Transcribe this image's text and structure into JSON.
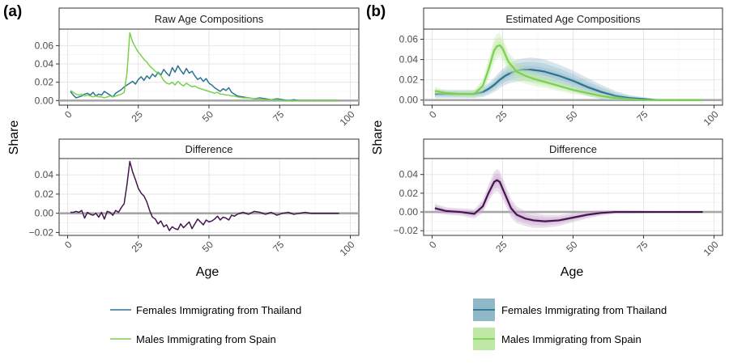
{
  "figure": {
    "panel_a_label": "(a)",
    "panel_b_label": "(b)",
    "ylabel": "Share",
    "xlabel": "Age"
  },
  "colors": {
    "thailand": "#2c7393",
    "spain": "#7ad151",
    "difference": "#44174f",
    "thailand_band": "#8fb8c9",
    "spain_band": "#bfe8a6",
    "difference_band": "#c8a6cf",
    "baseline": "#a6a6a6",
    "grid": "#e6e6e6",
    "strip_fill": "#ffffff"
  },
  "legend": {
    "left": [
      {
        "label": "Females Immigrating from Thailand",
        "series": "thailand",
        "band": false
      },
      {
        "label": "Males Immigrating from Spain",
        "series": "spain",
        "band": false
      }
    ],
    "right": [
      {
        "label": "Females Immigrating from Thailand",
        "series": "thailand",
        "band": true
      },
      {
        "label": "Males Immigrating from Spain",
        "series": "spain",
        "band": true
      }
    ]
  },
  "chart_data": [
    {
      "id": "a_top",
      "type": "line",
      "title": "Raw Age Compositions",
      "xlabel": "",
      "ylabel": "Share",
      "xlim": [
        -3,
        103
      ],
      "ylim": [
        -0.005,
        0.078
      ],
      "xticks": [
        0,
        25,
        50,
        75,
        100
      ],
      "yticks": [
        0,
        0.02,
        0.04,
        0.06
      ],
      "ytick_labels": [
        "0.00",
        "0.02",
        "0.04",
        "0.06"
      ],
      "baseline": 0,
      "series": [
        {
          "name": "Females Immigrating from Thailand",
          "color_key": "thailand",
          "x": [
            1,
            2,
            3,
            4,
            5,
            6,
            7,
            8,
            9,
            10,
            11,
            12,
            13,
            14,
            15,
            16,
            17,
            18,
            19,
            20,
            21,
            22,
            23,
            24,
            25,
            26,
            27,
            28,
            29,
            30,
            31,
            32,
            33,
            34,
            35,
            36,
            37,
            38,
            39,
            40,
            41,
            42,
            43,
            44,
            45,
            46,
            47,
            48,
            49,
            50,
            51,
            52,
            53,
            54,
            55,
            56,
            57,
            58,
            59,
            60,
            62,
            64,
            66,
            68,
            70,
            72,
            74,
            76,
            78,
            80,
            82,
            84,
            86,
            88,
            90,
            92,
            94,
            96
          ],
          "y": [
            0.01,
            0.006,
            0.003,
            0.004,
            0.005,
            0.007,
            0.008,
            0.006,
            0.009,
            0.005,
            0.007,
            0.006,
            0.01,
            0.008,
            0.006,
            0.004,
            0.008,
            0.01,
            0.012,
            0.015,
            0.017,
            0.019,
            0.021,
            0.018,
            0.023,
            0.026,
            0.022,
            0.027,
            0.024,
            0.029,
            0.026,
            0.031,
            0.028,
            0.034,
            0.03,
            0.027,
            0.036,
            0.031,
            0.038,
            0.033,
            0.029,
            0.035,
            0.03,
            0.032,
            0.027,
            0.023,
            0.025,
            0.021,
            0.024,
            0.019,
            0.017,
            0.014,
            0.012,
            0.01,
            0.013,
            0.011,
            0.014,
            0.009,
            0.007,
            0.005,
            0.004,
            0.003,
            0.002,
            0.003,
            0.002,
            0.001,
            0.002,
            0.001,
            0,
            0.001,
            0,
            0,
            0,
            0,
            0,
            0,
            0,
            0
          ]
        },
        {
          "name": "Males Immigrating from Spain",
          "color_key": "spain",
          "x": [
            1,
            2,
            3,
            4,
            5,
            6,
            7,
            8,
            9,
            10,
            11,
            12,
            13,
            14,
            15,
            16,
            17,
            18,
            19,
            20,
            21,
            22,
            23,
            24,
            25,
            26,
            27,
            28,
            29,
            30,
            31,
            32,
            33,
            34,
            35,
            36,
            37,
            38,
            39,
            40,
            41,
            42,
            43,
            44,
            45,
            46,
            47,
            48,
            49,
            50,
            51,
            52,
            53,
            54,
            55,
            56,
            57,
            58,
            59,
            60,
            62,
            64,
            66,
            68,
            70,
            72,
            74,
            76,
            78,
            80,
            82,
            84,
            86,
            88,
            90,
            92,
            94,
            96
          ],
          "y": [
            0.011,
            0.009,
            0.007,
            0.006,
            0.007,
            0.005,
            0.006,
            0.005,
            0.004,
            0.005,
            0.004,
            0.004,
            0.003,
            0.004,
            0.005,
            0.004,
            0.005,
            0.006,
            0.007,
            0.009,
            0.03,
            0.074,
            0.064,
            0.058,
            0.053,
            0.049,
            0.045,
            0.042,
            0.038,
            0.035,
            0.032,
            0.03,
            0.027,
            0.022,
            0.019,
            0.018,
            0.02,
            0.017,
            0.021,
            0.018,
            0.016,
            0.019,
            0.017,
            0.015,
            0.016,
            0.014,
            0.013,
            0.012,
            0.011,
            0.01,
            0.009,
            0.008,
            0.009,
            0.007,
            0.007,
            0.006,
            0.006,
            0.005,
            0.005,
            0.004,
            0.003,
            0.003,
            0.002,
            0.002,
            0.001,
            0.001,
            0.001,
            0,
            0,
            0,
            0,
            0,
            0,
            0,
            0,
            0,
            0,
            0
          ]
        }
      ]
    },
    {
      "id": "a_bottom",
      "type": "line",
      "title": "Difference",
      "xlabel": "Age",
      "ylabel": "Share",
      "xlim": [
        -3,
        103
      ],
      "ylim": [
        -0.023,
        0.057
      ],
      "xticks": [
        0,
        25,
        50,
        75,
        100
      ],
      "yticks": [
        -0.02,
        0,
        0.02,
        0.04
      ],
      "ytick_labels": [
        "−0.02",
        "0.00",
        "0.02",
        "0.04"
      ],
      "baseline": 0,
      "series": [
        {
          "name": "Difference",
          "color_key": "difference",
          "x": [
            1,
            2,
            3,
            4,
            5,
            6,
            7,
            8,
            9,
            10,
            11,
            12,
            13,
            14,
            15,
            16,
            17,
            18,
            19,
            20,
            21,
            22,
            23,
            24,
            25,
            26,
            27,
            28,
            29,
            30,
            31,
            32,
            33,
            34,
            35,
            36,
            37,
            38,
            39,
            40,
            41,
            42,
            43,
            44,
            45,
            46,
            47,
            48,
            49,
            50,
            51,
            52,
            53,
            54,
            55,
            56,
            57,
            58,
            59,
            60,
            62,
            64,
            66,
            68,
            70,
            72,
            74,
            76,
            78,
            80,
            82,
            84,
            86,
            88,
            90,
            92,
            94,
            96
          ],
          "y": [
            0.001,
            0.001,
            0.002,
            0.001,
            0.003,
            -0.005,
            0.001,
            -0.001,
            -0.002,
            0,
            -0.004,
            0.001,
            -0.006,
            0.002,
            0.001,
            -0.002,
            0.003,
            0.001,
            0.006,
            0.01,
            0.03,
            0.054,
            0.043,
            0.035,
            0.026,
            0.021,
            0.018,
            0.012,
            0.003,
            -0.004,
            -0.006,
            -0.011,
            -0.008,
            -0.014,
            -0.012,
            -0.018,
            -0.014,
            -0.016,
            -0.017,
            -0.011,
            -0.015,
            -0.012,
            -0.009,
            -0.016,
            -0.011,
            -0.006,
            -0.009,
            -0.012,
            -0.007,
            -0.009,
            -0.008,
            -0.006,
            -0.003,
            -0.007,
            -0.004,
            -0.005,
            -0.007,
            -0.002,
            -0.003,
            -0.001,
            0.001,
            -0.001,
            0.002,
            0.001,
            -0.001,
            0.001,
            -0.002,
            0,
            0.001,
            -0.001,
            0,
            0.001,
            0,
            0,
            0,
            0,
            0,
            0
          ]
        }
      ]
    },
    {
      "id": "b_top",
      "type": "line",
      "title": "Estimated Age Compositions",
      "xlabel": "",
      "ylabel": "Share",
      "xlim": [
        -3,
        103
      ],
      "ylim": [
        -0.005,
        0.07
      ],
      "xticks": [
        0,
        25,
        50,
        75,
        100
      ],
      "yticks": [
        0,
        0.02,
        0.04,
        0.06
      ],
      "ytick_labels": [
        "0.00",
        "0.02",
        "0.04",
        "0.06"
      ],
      "baseline": 0,
      "series": [
        {
          "name": "Females Immigrating from Thailand",
          "color_key": "thailand",
          "band_key": "thailand_band",
          "x": [
            1,
            5,
            10,
            15,
            18,
            20,
            22,
            24,
            26,
            28,
            30,
            32,
            35,
            38,
            40,
            45,
            50,
            55,
            60,
            65,
            70,
            75,
            80,
            85,
            90,
            96
          ],
          "y": [
            0.006,
            0.006,
            0.006,
            0.006,
            0.008,
            0.011,
            0.015,
            0.02,
            0.024,
            0.027,
            0.029,
            0.03,
            0.03,
            0.029,
            0.028,
            0.024,
            0.019,
            0.013,
            0.008,
            0.004,
            0.002,
            0.001,
            0,
            0,
            0,
            0
          ],
          "band": [
            0.004,
            0.004,
            0.004,
            0.004,
            0.005,
            0.006,
            0.007,
            0.008,
            0.009,
            0.01,
            0.011,
            0.011,
            0.012,
            0.012,
            0.012,
            0.011,
            0.01,
            0.009,
            0.007,
            0.005,
            0.003,
            0.002,
            0.001,
            0.001,
            0.001,
            0.001
          ]
        },
        {
          "name": "Males Immigrating from Spain",
          "color_key": "spain",
          "band_key": "spain_band",
          "x": [
            1,
            5,
            10,
            15,
            18,
            20,
            22,
            23,
            24,
            25,
            27,
            30,
            33,
            36,
            40,
            45,
            50,
            55,
            60,
            65,
            70,
            75,
            80,
            85,
            90,
            96
          ],
          "y": [
            0.009,
            0.007,
            0.006,
            0.006,
            0.014,
            0.03,
            0.049,
            0.053,
            0.054,
            0.051,
            0.038,
            0.028,
            0.024,
            0.021,
            0.018,
            0.014,
            0.01,
            0.007,
            0.004,
            0.002,
            0.001,
            0,
            0,
            0,
            0,
            0
          ],
          "band": [
            0.004,
            0.003,
            0.003,
            0.004,
            0.007,
            0.01,
            0.012,
            0.012,
            0.012,
            0.011,
            0.01,
            0.009,
            0.008,
            0.007,
            0.006,
            0.005,
            0.004,
            0.003,
            0.003,
            0.002,
            0.001,
            0.001,
            0.001,
            0.001,
            0.001,
            0.001
          ]
        }
      ]
    },
    {
      "id": "b_bottom",
      "type": "line",
      "title": "Difference",
      "xlabel": "Age",
      "ylabel": "Share",
      "xlim": [
        -3,
        103
      ],
      "ylim": [
        -0.025,
        0.057
      ],
      "xticks": [
        0,
        25,
        50,
        75,
        100
      ],
      "yticks": [
        -0.02,
        0,
        0.02,
        0.04
      ],
      "ytick_labels": [
        "−0.02",
        "0.00",
        "0.02",
        "0.04"
      ],
      "baseline": 0,
      "series": [
        {
          "name": "Difference",
          "color_key": "difference",
          "band_key": "difference_band",
          "x": [
            1,
            5,
            10,
            15,
            18,
            20,
            22,
            23,
            24,
            26,
            28,
            30,
            33,
            36,
            40,
            45,
            50,
            55,
            60,
            65,
            70,
            80,
            90,
            96
          ],
          "y": [
            0.004,
            0.001,
            0,
            -0.002,
            0.006,
            0.02,
            0.032,
            0.034,
            0.032,
            0.018,
            0.004,
            -0.003,
            -0.007,
            -0.009,
            -0.01,
            -0.009,
            -0.006,
            -0.003,
            -0.001,
            0,
            0,
            0,
            0,
            0
          ],
          "band": [
            0.005,
            0.004,
            0.004,
            0.005,
            0.007,
            0.009,
            0.011,
            0.012,
            0.012,
            0.011,
            0.01,
            0.009,
            0.008,
            0.008,
            0.007,
            0.006,
            0.005,
            0.004,
            0.003,
            0.002,
            0.002,
            0.001,
            0.001,
            0.001
          ]
        }
      ]
    }
  ]
}
